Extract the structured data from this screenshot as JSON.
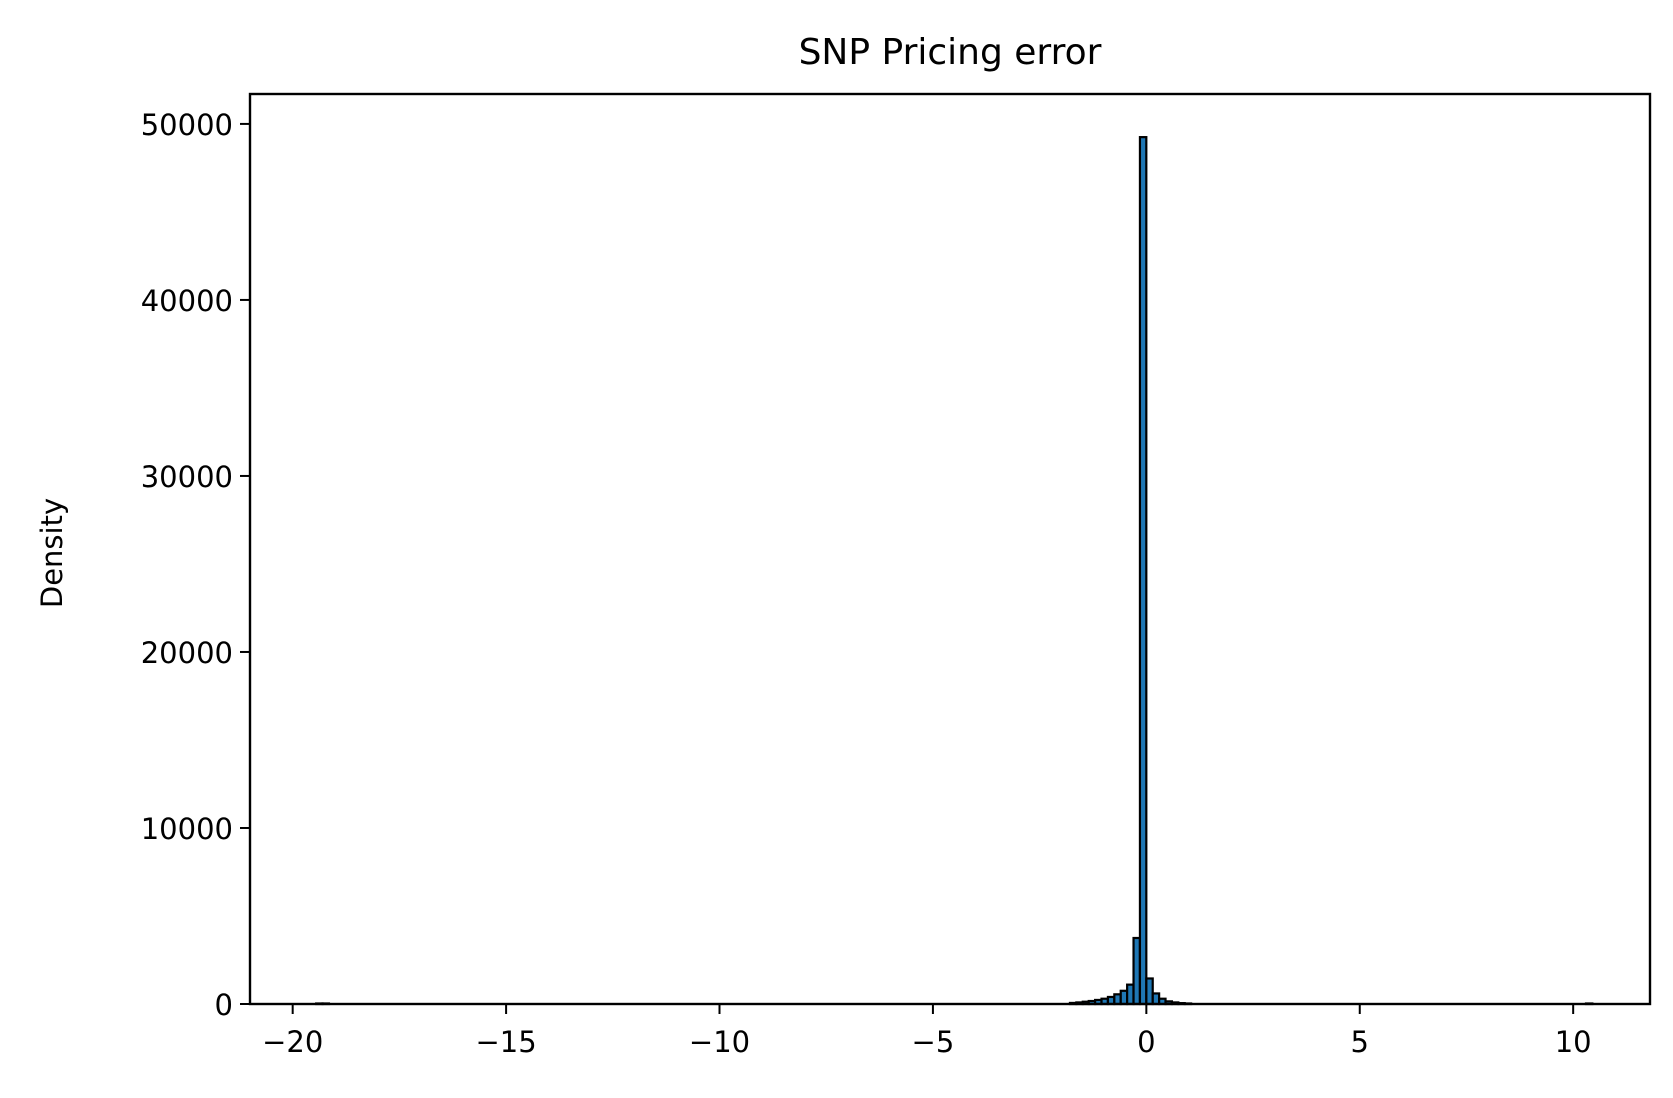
{
  "chart_data": {
    "type": "bar",
    "title": "SNP Pricing error",
    "xlabel": "",
    "ylabel": "Density",
    "xlim": [
      -21,
      11.8
    ],
    "ylim": [
      0,
      51700
    ],
    "x_ticks": [
      -20,
      -15,
      -10,
      -5,
      0,
      5,
      10
    ],
    "x_tick_labels": [
      "−20",
      "−15",
      "−10",
      "−5",
      "0",
      "5",
      "10"
    ],
    "y_ticks": [
      0,
      10000,
      20000,
      30000,
      40000,
      50000
    ],
    "y_tick_labels": [
      "0",
      "10000",
      "20000",
      "30000",
      "40000",
      "50000"
    ],
    "grid": false,
    "bar_color": "#1f77b4",
    "edge_color": "#000000",
    "bins": {
      "width": 0.1495,
      "left_edges": [
        -19.45,
        -19.3,
        -1.79,
        -1.64,
        -1.49,
        -1.35,
        -1.2,
        -1.05,
        -0.9,
        -0.75,
        -0.6,
        -0.45,
        -0.3,
        -0.15,
        0.0,
        0.15,
        0.3,
        0.45,
        0.6,
        0.75,
        0.9,
        10.3
      ],
      "values": [
        30,
        30,
        60,
        90,
        130,
        170,
        230,
        300,
        400,
        550,
        750,
        1100,
        3750,
        49250,
        1450,
        600,
        300,
        150,
        90,
        50,
        30,
        30
      ]
    }
  }
}
